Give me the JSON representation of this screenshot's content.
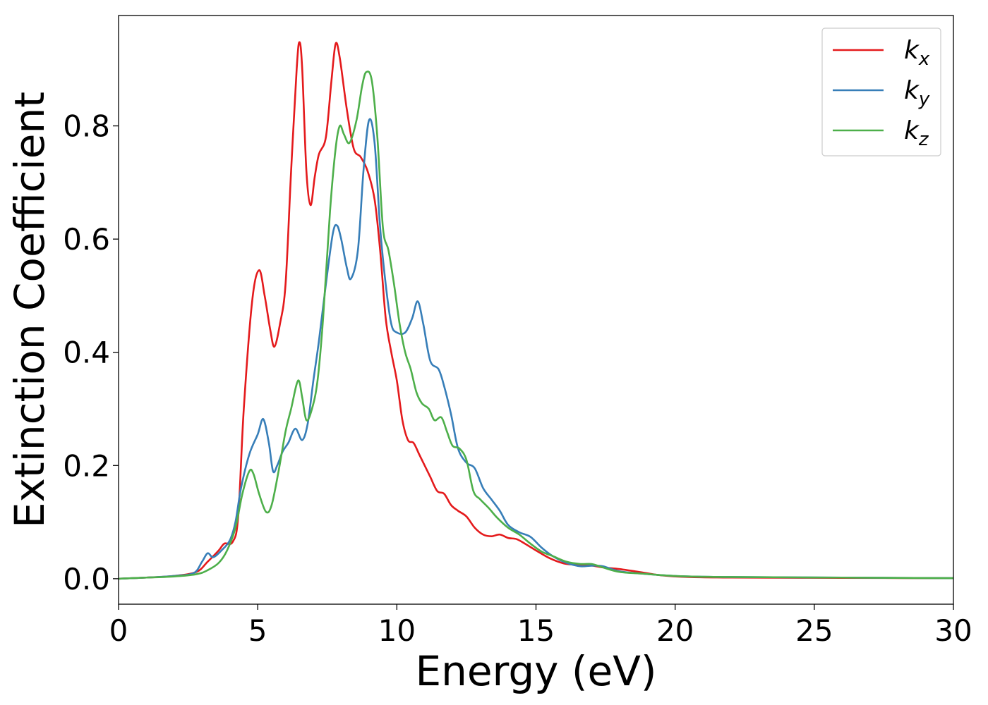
{
  "chart_data": {
    "type": "line",
    "title": "",
    "xlabel": "Energy (eV)",
    "ylabel": "Extinction Coefficient",
    "xlim": [
      0,
      30
    ],
    "ylim": [
      -0.045,
      0.995
    ],
    "xticks": [
      0,
      5,
      10,
      15,
      20,
      25,
      30
    ],
    "xtick_labels": [
      "0",
      "5",
      "10",
      "15",
      "20",
      "25",
      "30"
    ],
    "yticks": [
      0.0,
      0.2,
      0.4,
      0.6,
      0.8
    ],
    "ytick_labels": [
      "0.0",
      "0.2",
      "0.4",
      "0.6",
      "0.8"
    ],
    "grid": false,
    "legend_position": "top-right",
    "series": [
      {
        "name": "kx",
        "label_base": "k",
        "label_sub": "x",
        "color": "#e41a1c",
        "points": [
          [
            0,
            0
          ],
          [
            1,
            0.002
          ],
          [
            2,
            0.005
          ],
          [
            2.8,
            0.012
          ],
          [
            3.2,
            0.03
          ],
          [
            3.6,
            0.05
          ],
          [
            3.8,
            0.062
          ],
          [
            4.1,
            0.065
          ],
          [
            4.3,
            0.11
          ],
          [
            4.5,
            0.3
          ],
          [
            4.8,
            0.49
          ],
          [
            5.05,
            0.545
          ],
          [
            5.25,
            0.5
          ],
          [
            5.45,
            0.44
          ],
          [
            5.6,
            0.41
          ],
          [
            5.8,
            0.45
          ],
          [
            6.0,
            0.52
          ],
          [
            6.2,
            0.72
          ],
          [
            6.4,
            0.9
          ],
          [
            6.5,
            0.948
          ],
          [
            6.6,
            0.9
          ],
          [
            6.75,
            0.72
          ],
          [
            6.9,
            0.66
          ],
          [
            7.05,
            0.71
          ],
          [
            7.2,
            0.75
          ],
          [
            7.45,
            0.78
          ],
          [
            7.65,
            0.88
          ],
          [
            7.8,
            0.945
          ],
          [
            7.95,
            0.92
          ],
          [
            8.2,
            0.83
          ],
          [
            8.45,
            0.76
          ],
          [
            8.7,
            0.745
          ],
          [
            8.95,
            0.72
          ],
          [
            9.2,
            0.67
          ],
          [
            9.4,
            0.58
          ],
          [
            9.6,
            0.46
          ],
          [
            9.8,
            0.4
          ],
          [
            10.0,
            0.35
          ],
          [
            10.2,
            0.28
          ],
          [
            10.4,
            0.245
          ],
          [
            10.6,
            0.24
          ],
          [
            10.8,
            0.22
          ],
          [
            11.0,
            0.2
          ],
          [
            11.2,
            0.18
          ],
          [
            11.45,
            0.155
          ],
          [
            11.7,
            0.15
          ],
          [
            11.95,
            0.13
          ],
          [
            12.2,
            0.12
          ],
          [
            12.5,
            0.11
          ],
          [
            12.8,
            0.09
          ],
          [
            13.1,
            0.078
          ],
          [
            13.4,
            0.075
          ],
          [
            13.7,
            0.078
          ],
          [
            14.0,
            0.072
          ],
          [
            14.3,
            0.07
          ],
          [
            14.6,
            0.062
          ],
          [
            15.0,
            0.05
          ],
          [
            15.5,
            0.036
          ],
          [
            16.0,
            0.027
          ],
          [
            16.4,
            0.025
          ],
          [
            16.9,
            0.024
          ],
          [
            17.4,
            0.02
          ],
          [
            18.0,
            0.017
          ],
          [
            18.7,
            0.012
          ],
          [
            19.5,
            0.006
          ],
          [
            20.5,
            0.003
          ],
          [
            22,
            0.002
          ],
          [
            26,
            0.0015
          ],
          [
            30,
            0.0008
          ]
        ]
      },
      {
        "name": "ky",
        "label_base": "k",
        "label_sub": "y",
        "color": "#377eb8",
        "points": [
          [
            0,
            0
          ],
          [
            1,
            0.002
          ],
          [
            2,
            0.005
          ],
          [
            2.7,
            0.01
          ],
          [
            3.0,
            0.03
          ],
          [
            3.2,
            0.045
          ],
          [
            3.4,
            0.038
          ],
          [
            3.7,
            0.05
          ],
          [
            4.0,
            0.068
          ],
          [
            4.2,
            0.1
          ],
          [
            4.4,
            0.16
          ],
          [
            4.7,
            0.22
          ],
          [
            5.0,
            0.255
          ],
          [
            5.2,
            0.282
          ],
          [
            5.4,
            0.24
          ],
          [
            5.55,
            0.19
          ],
          [
            5.7,
            0.2
          ],
          [
            5.9,
            0.225
          ],
          [
            6.1,
            0.24
          ],
          [
            6.35,
            0.265
          ],
          [
            6.6,
            0.245
          ],
          [
            6.8,
            0.275
          ],
          [
            7.0,
            0.35
          ],
          [
            7.2,
            0.42
          ],
          [
            7.45,
            0.52
          ],
          [
            7.7,
            0.61
          ],
          [
            7.85,
            0.624
          ],
          [
            8.0,
            0.6
          ],
          [
            8.2,
            0.55
          ],
          [
            8.35,
            0.53
          ],
          [
            8.6,
            0.58
          ],
          [
            8.8,
            0.72
          ],
          [
            9.0,
            0.81
          ],
          [
            9.2,
            0.77
          ],
          [
            9.4,
            0.62
          ],
          [
            9.6,
            0.52
          ],
          [
            9.8,
            0.45
          ],
          [
            10.0,
            0.435
          ],
          [
            10.3,
            0.435
          ],
          [
            10.55,
            0.46
          ],
          [
            10.75,
            0.49
          ],
          [
            10.95,
            0.45
          ],
          [
            11.2,
            0.385
          ],
          [
            11.5,
            0.37
          ],
          [
            11.7,
            0.34
          ],
          [
            11.95,
            0.29
          ],
          [
            12.2,
            0.23
          ],
          [
            12.5,
            0.205
          ],
          [
            12.8,
            0.195
          ],
          [
            13.1,
            0.16
          ],
          [
            13.4,
            0.14
          ],
          [
            13.7,
            0.12
          ],
          [
            14.0,
            0.095
          ],
          [
            14.4,
            0.082
          ],
          [
            14.8,
            0.074
          ],
          [
            15.2,
            0.055
          ],
          [
            15.6,
            0.04
          ],
          [
            16.1,
            0.028
          ],
          [
            16.6,
            0.022
          ],
          [
            17.0,
            0.023
          ],
          [
            17.4,
            0.022
          ],
          [
            18.0,
            0.013
          ],
          [
            18.8,
            0.009
          ],
          [
            19.6,
            0.006
          ],
          [
            20.5,
            0.004
          ],
          [
            22,
            0.003
          ],
          [
            26,
            0.002
          ],
          [
            30,
            0.001
          ]
        ]
      },
      {
        "name": "kz",
        "label_base": "k",
        "label_sub": "z",
        "color": "#4daf4a",
        "points": [
          [
            0,
            0
          ],
          [
            1,
            0.002
          ],
          [
            2,
            0.004
          ],
          [
            2.8,
            0.008
          ],
          [
            3.2,
            0.015
          ],
          [
            3.6,
            0.028
          ],
          [
            3.9,
            0.05
          ],
          [
            4.2,
            0.09
          ],
          [
            4.45,
            0.15
          ],
          [
            4.7,
            0.19
          ],
          [
            4.85,
            0.185
          ],
          [
            5.05,
            0.15
          ],
          [
            5.3,
            0.118
          ],
          [
            5.5,
            0.13
          ],
          [
            5.75,
            0.19
          ],
          [
            6.0,
            0.26
          ],
          [
            6.2,
            0.3
          ],
          [
            6.45,
            0.35
          ],
          [
            6.6,
            0.32
          ],
          [
            6.75,
            0.28
          ],
          [
            6.95,
            0.3
          ],
          [
            7.15,
            0.35
          ],
          [
            7.35,
            0.46
          ],
          [
            7.6,
            0.65
          ],
          [
            7.8,
            0.76
          ],
          [
            7.95,
            0.8
          ],
          [
            8.1,
            0.785
          ],
          [
            8.3,
            0.77
          ],
          [
            8.55,
            0.81
          ],
          [
            8.75,
            0.87
          ],
          [
            8.9,
            0.895
          ],
          [
            9.1,
            0.88
          ],
          [
            9.3,
            0.78
          ],
          [
            9.5,
            0.62
          ],
          [
            9.7,
            0.58
          ],
          [
            9.9,
            0.52
          ],
          [
            10.1,
            0.45
          ],
          [
            10.3,
            0.4
          ],
          [
            10.5,
            0.37
          ],
          [
            10.7,
            0.33
          ],
          [
            10.9,
            0.31
          ],
          [
            11.15,
            0.3
          ],
          [
            11.35,
            0.28
          ],
          [
            11.6,
            0.285
          ],
          [
            11.8,
            0.26
          ],
          [
            12.0,
            0.235
          ],
          [
            12.25,
            0.23
          ],
          [
            12.5,
            0.21
          ],
          [
            12.75,
            0.155
          ],
          [
            13.0,
            0.14
          ],
          [
            13.3,
            0.125
          ],
          [
            13.6,
            0.108
          ],
          [
            14.0,
            0.09
          ],
          [
            14.4,
            0.078
          ],
          [
            14.8,
            0.062
          ],
          [
            15.2,
            0.048
          ],
          [
            15.6,
            0.04
          ],
          [
            16.1,
            0.03
          ],
          [
            16.6,
            0.026
          ],
          [
            17.0,
            0.026
          ],
          [
            17.4,
            0.02
          ],
          [
            18.0,
            0.012
          ],
          [
            18.8,
            0.009
          ],
          [
            19.6,
            0.006
          ],
          [
            20.5,
            0.004
          ],
          [
            22,
            0.003
          ],
          [
            26,
            0.002
          ],
          [
            30,
            0.001
          ]
        ]
      }
    ]
  }
}
